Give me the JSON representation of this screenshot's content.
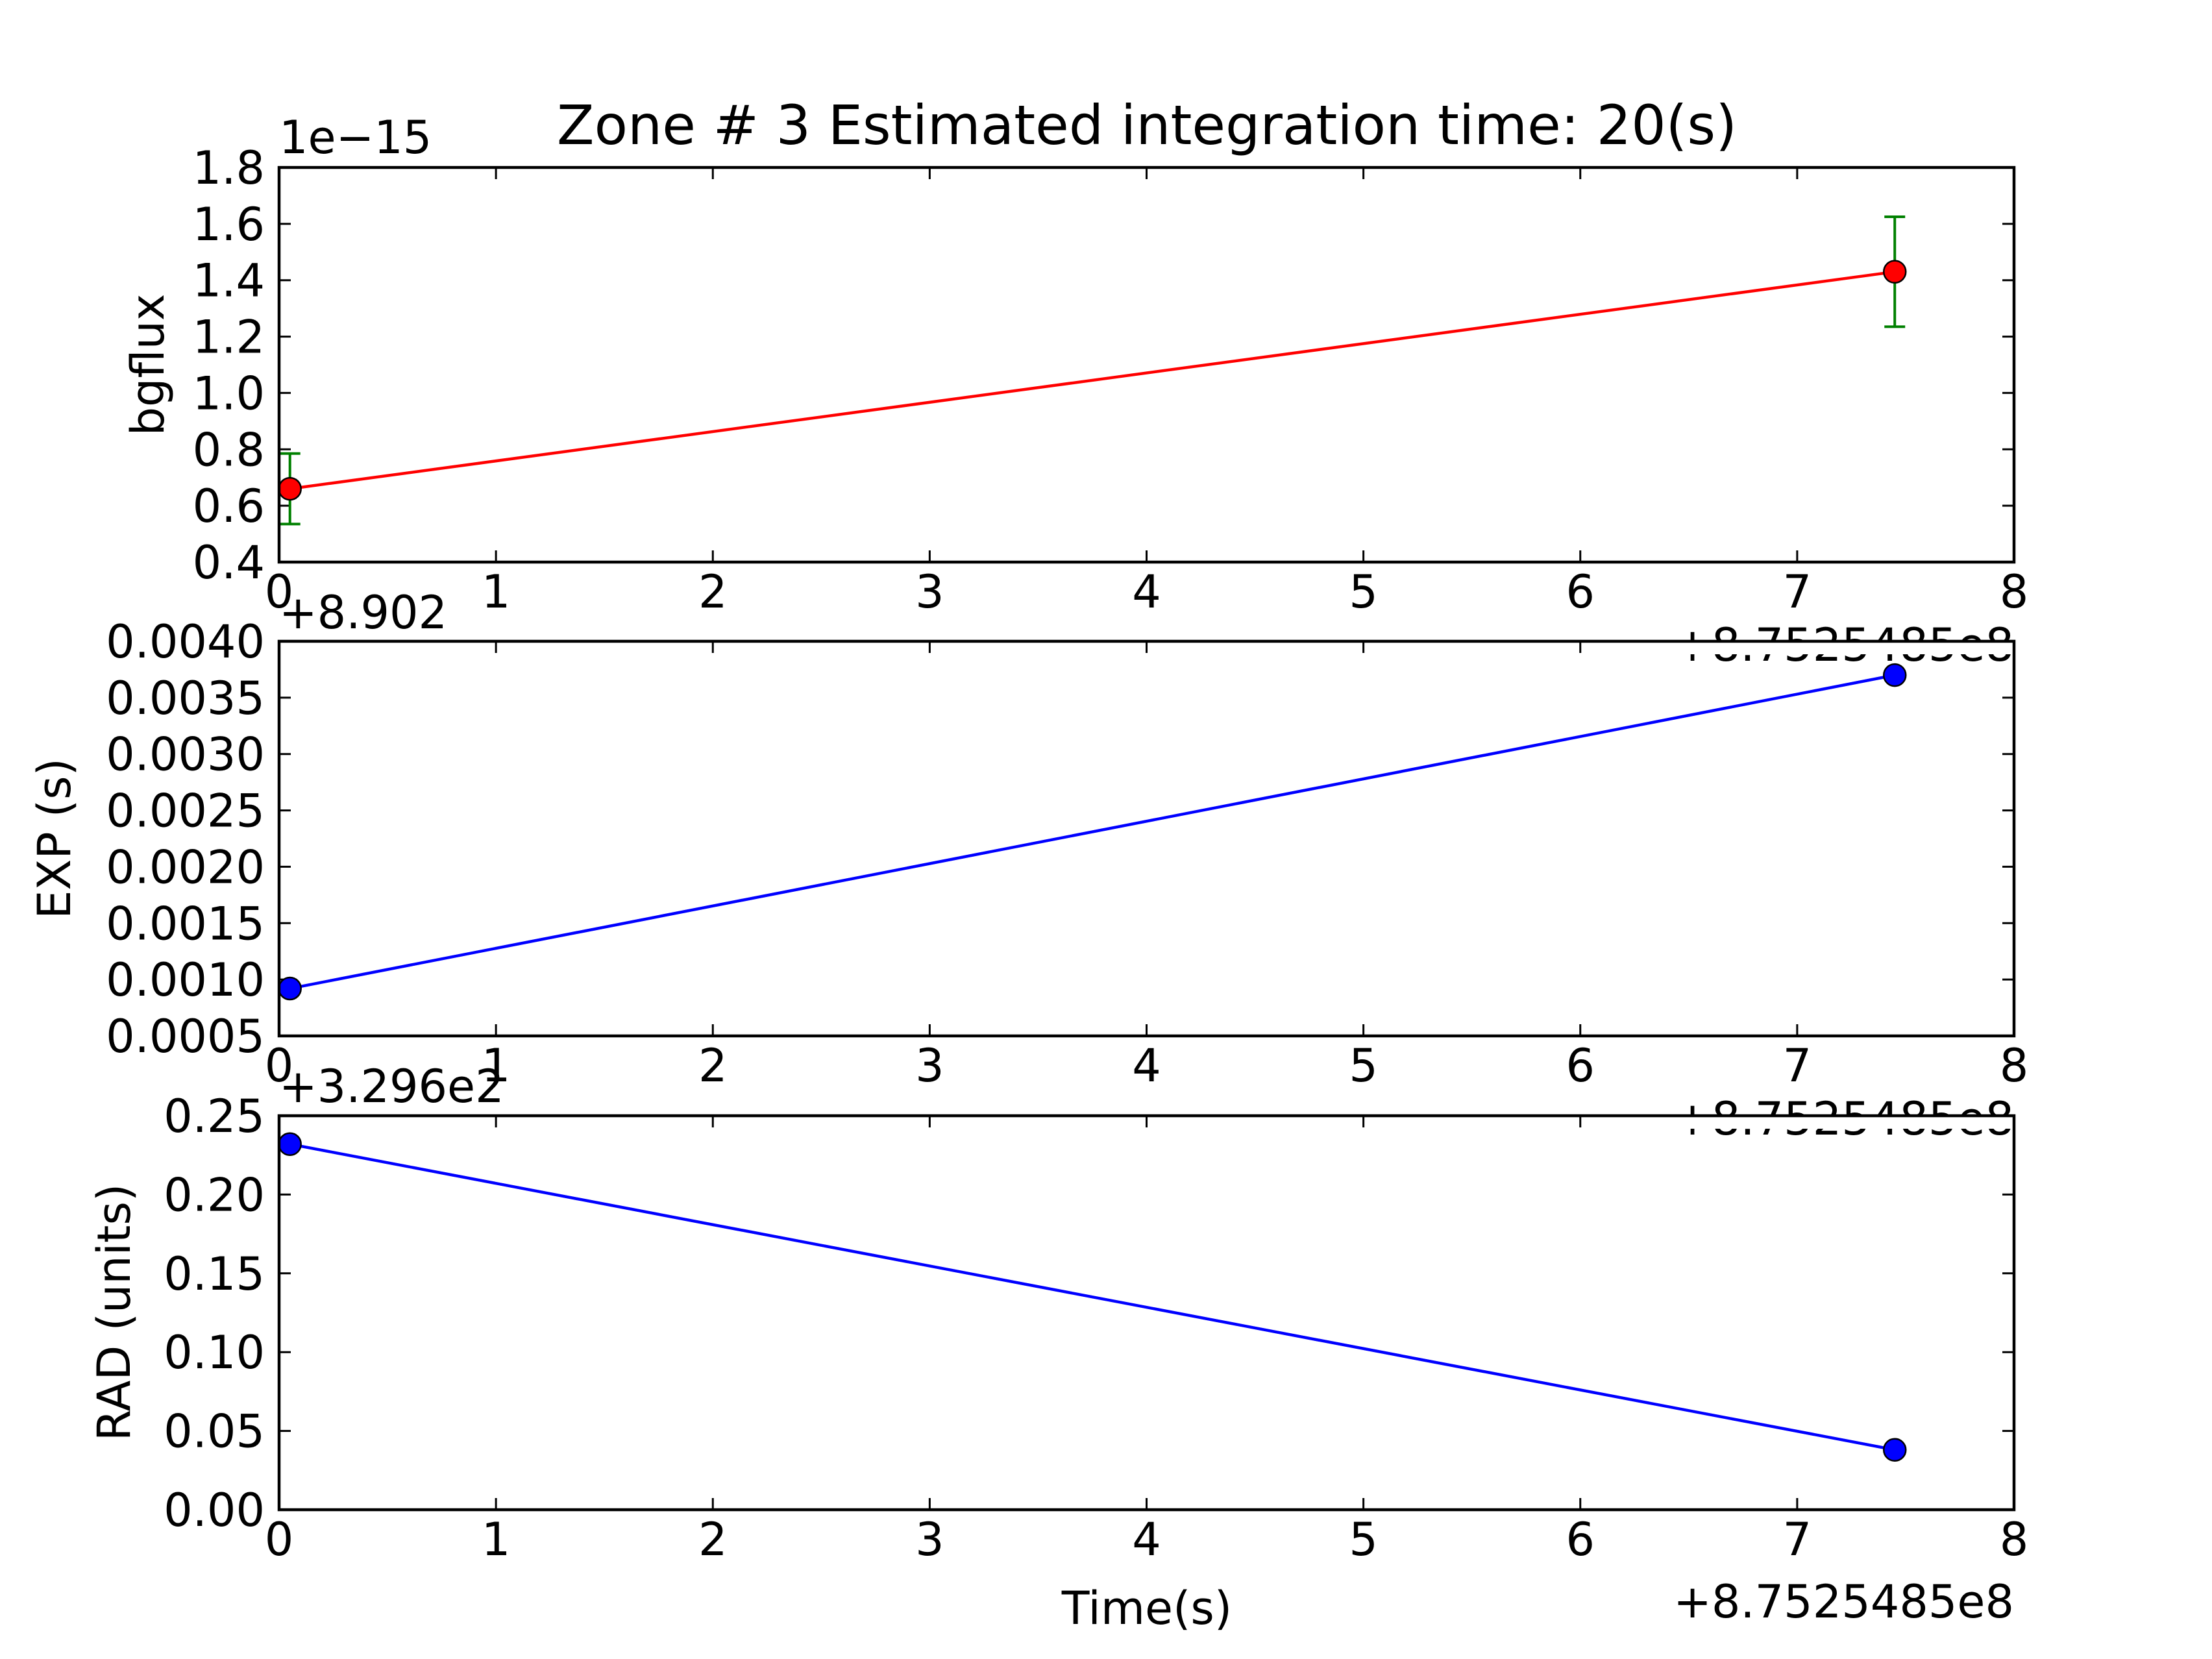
{
  "figure": {
    "title": "Zone # 3 Estimated integration time: 20(s)",
    "background": "#ffffff"
  },
  "chart_data": [
    {
      "type": "line",
      "id": "bgflux",
      "title": "Zone # 3 Estimated integration time: 20(s)",
      "xlabel": "",
      "ylabel": "bgflux",
      "x_offset_label": "+8.7525485e8",
      "y_offset_label": "1e−15",
      "xlim": [
        0,
        8
      ],
      "ylim": [
        0.4,
        1.8
      ],
      "xticks": [
        "0",
        "1",
        "2",
        "3",
        "4",
        "5",
        "6",
        "7",
        "8"
      ],
      "yticks": [
        "0.4",
        "0.6",
        "0.8",
        "1.0",
        "1.2",
        "1.4",
        "1.6",
        "1.8"
      ],
      "x": [
        0.05,
        7.45
      ],
      "series": [
        {
          "values": [
            0.66,
            1.43
          ],
          "errors": [
            0.125,
            0.195
          ],
          "line_color": "#ff0000",
          "marker_color": "#ff0000",
          "error_color": "#008000"
        }
      ],
      "grid": false
    },
    {
      "type": "line",
      "id": "exp",
      "xlabel": "",
      "ylabel": "EXP (s)",
      "x_offset_label": "+8.7525485e8",
      "y_offset_label": "+8.902",
      "xlim": [
        0,
        8
      ],
      "ylim": [
        0.0005,
        0.004
      ],
      "xticks": [
        "0",
        "1",
        "2",
        "3",
        "4",
        "5",
        "6",
        "7",
        "8"
      ],
      "yticks": [
        "0.0005",
        "0.0010",
        "0.0015",
        "0.0020",
        "0.0025",
        "0.0030",
        "0.0035",
        "0.0040"
      ],
      "x": [
        0.05,
        7.45
      ],
      "series": [
        {
          "values": [
            0.00092,
            0.0037
          ],
          "line_color": "#0000ff",
          "marker_color": "#0000ff"
        }
      ],
      "grid": false
    },
    {
      "type": "line",
      "id": "rad",
      "xlabel": "Time(s)",
      "ylabel": "RAD (units)",
      "x_offset_label": "+8.7525485e8",
      "y_offset_label": "+3.296e2",
      "xlim": [
        0,
        8
      ],
      "ylim": [
        0.0,
        0.25
      ],
      "xticks": [
        "0",
        "1",
        "2",
        "3",
        "4",
        "5",
        "6",
        "7",
        "8"
      ],
      "yticks": [
        "0.00",
        "0.05",
        "0.10",
        "0.15",
        "0.20",
        "0.25"
      ],
      "x": [
        0.05,
        7.45
      ],
      "series": [
        {
          "values": [
            0.232,
            0.038
          ],
          "line_color": "#0000ff",
          "marker_color": "#0000ff"
        }
      ],
      "grid": false
    }
  ]
}
